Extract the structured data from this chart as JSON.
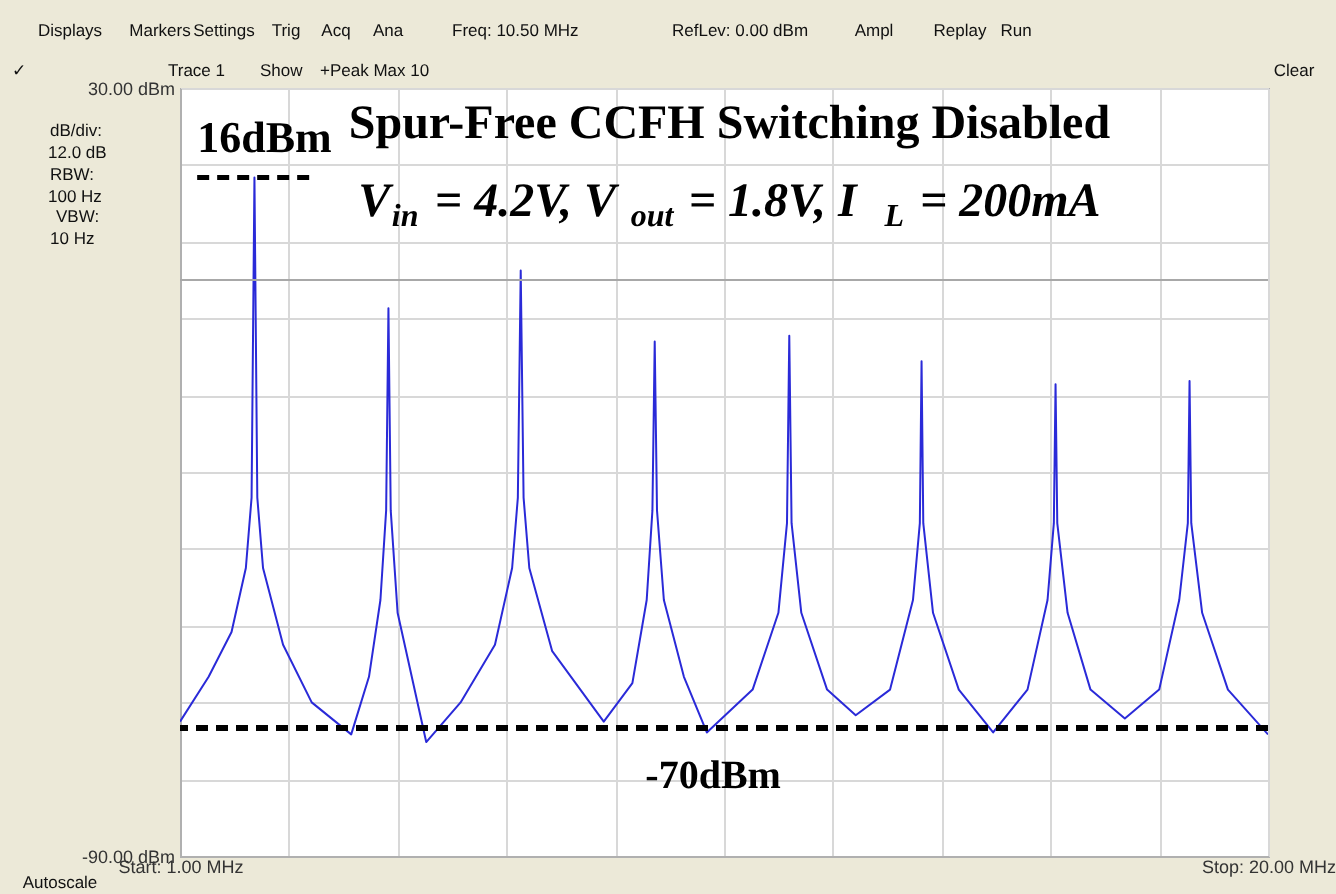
{
  "chart_data": {
    "type": "line",
    "title": "Spur-Free CCFH Switching Disabled",
    "subtitle": "V$_{in}$ = 4.2V, V$_{out}$ = 1.8V, I$_{L}$ = 200mA",
    "xlim": [
      1,
      20
    ],
    "ylim": [
      -90,
      30
    ],
    "xticks": [
      {
        "value": 1,
        "label": "Start: 1.00 MHz"
      },
      {
        "value": 2.9,
        "label": null
      },
      {
        "value": 4.8,
        "label": null
      },
      {
        "value": 6.7,
        "label": null
      },
      {
        "value": 8.6,
        "label": null
      },
      {
        "value": 10.5,
        "label": null
      },
      {
        "value": 12.4,
        "label": null
      },
      {
        "value": 14.3,
        "label": null
      },
      {
        "value": 16.2,
        "label": null
      },
      {
        "value": 18.1,
        "label": null
      },
      {
        "value": 20,
        "label": "Stop: 20.00 MHz"
      }
    ],
    "yticks": [
      {
        "value": 30,
        "label": "30.00 dBm"
      },
      {
        "value": 18,
        "label": null
      },
      {
        "value": 6,
        "label": null
      },
      {
        "value": -6,
        "label": null
      },
      {
        "value": -18,
        "label": null
      },
      {
        "value": -30,
        "label": null
      },
      {
        "value": -42,
        "label": null
      },
      {
        "value": -54,
        "label": null
      },
      {
        "value": -66,
        "label": null
      },
      {
        "value": -78,
        "label": null
      },
      {
        "value": -90,
        "label": "-90.00 dBm"
      }
    ],
    "grid": true,
    "marker": "none",
    "line_style": "solid",
    "series": [
      {
        "color": "#2a2ad8",
        "x": [
          1.0,
          1.5,
          1.9,
          2.15,
          2.25,
          2.3,
          2.35,
          2.45,
          2.8,
          3.3,
          3.99,
          4.3,
          4.5,
          4.6,
          4.64,
          4.68,
          4.8,
          5.3,
          5.9,
          6.5,
          6.8,
          6.9,
          6.95,
          7.0,
          7.1,
          7.5,
          8.4,
          8.9,
          9.15,
          9.25,
          9.29,
          9.33,
          9.45,
          9.8,
          10.2,
          11.0,
          11.45,
          11.6,
          11.64,
          11.68,
          11.85,
          12.3,
          12.8,
          13.4,
          13.8,
          13.92,
          13.95,
          13.98,
          14.15,
          14.6,
          15.2,
          15.8,
          16.15,
          16.26,
          16.29,
          16.32,
          16.5,
          16.9,
          17.5,
          18.1,
          18.45,
          18.6,
          18.63,
          18.66,
          18.85,
          19.3,
          20.0
        ],
        "values": [
          -69,
          -62,
          -55,
          -45,
          -34,
          16,
          -34,
          -45,
          -57,
          -66,
          -71,
          -62,
          -50,
          -36,
          -4.4,
          -36,
          -52,
          -72.2,
          -66,
          -57,
          -45,
          -34,
          1.5,
          -34,
          -45,
          -58,
          -69,
          -63,
          -50,
          -36,
          -9.6,
          -36,
          -50,
          -62,
          -70.7,
          -64,
          -52,
          -38,
          -8.7,
          -38,
          -52,
          -64,
          -68,
          -64,
          -50,
          -38,
          -12.7,
          -38,
          -52,
          -64,
          -70.7,
          -64,
          -50,
          -38,
          -16.3,
          -38,
          -52,
          -64,
          -68.5,
          -64,
          -50,
          -38,
          -15.8,
          -38,
          -52,
          -64,
          -71
        ]
      },
      {
        "color": "#000000",
        "line_style": "dashed",
        "x": [
          1.3,
          3.3
        ],
        "values": [
          16,
          16
        ]
      }
    ],
    "ref_lines": [
      {
        "axis": "y",
        "value": -70,
        "label": "-70dBm",
        "color": "#000000",
        "line_style": "dashed"
      },
      {
        "axis": "y",
        "value": 0,
        "color": "#a8a8a8",
        "line_style": "solid"
      }
    ],
    "annotations": [
      {
        "text": "16dBm",
        "x": 1.3,
        "y": 16
      },
      "Displays",
      "Markers",
      "Settings",
      "Trig",
      "Acq",
      "Ana",
      "Freq: 10.50 MHz",
      "RefLev: 0.00 dBm",
      "Ampl",
      "Replay",
      "Run",
      "✓",
      "Trace 1",
      "Show",
      "+Peak Max 10",
      "Clear",
      "dB/div:",
      "12.0 dB",
      "RBW:",
      "100 Hz",
      "VBW:",
      "10 Hz",
      "Autoscale"
    ]
  }
}
